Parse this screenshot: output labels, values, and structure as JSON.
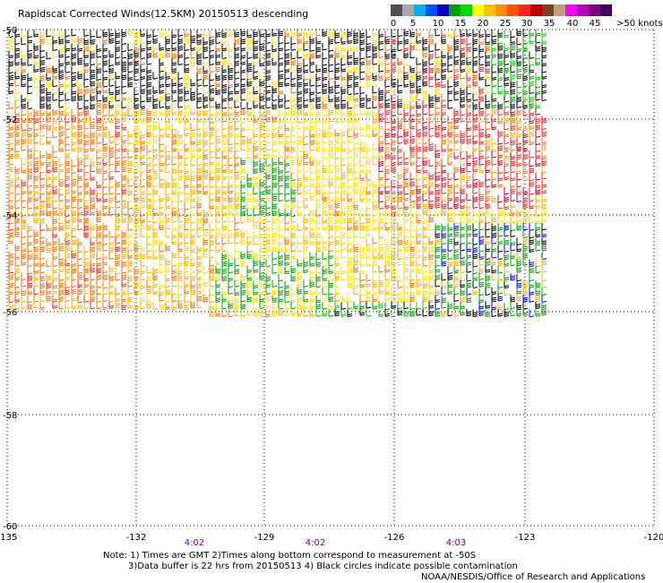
{
  "title": "Rapidscat Corrected Winds(12.5KM) 20150513 descending",
  "legend": {
    "colors": [
      "#505050",
      "#a8a8a8",
      "#00b0f0",
      "#0050ff",
      "#0000c0",
      "#00a000",
      "#00dd00",
      "#ffff00",
      "#ffc000",
      "#ff9000",
      "#ff5000",
      "#ff2020",
      "#c00000",
      "#804020",
      "#c0a080",
      "#ff00ff",
      "#c000c0",
      "#800080",
      "#400060"
    ],
    "labels": [
      "0",
      "5",
      "10",
      "15",
      "20",
      "25",
      "30",
      "35",
      "40",
      "45",
      ">50 knots"
    ]
  },
  "map": {
    "lat_labels": [
      "-50",
      "-52",
      "-54",
      "-56",
      "-58",
      "-60"
    ],
    "lon_labels": [
      "-135",
      "-132",
      "-129",
      "-126",
      "-123",
      "-120"
    ],
    "time_labels": [
      "4:02",
      "4:02",
      "4:03"
    ],
    "barb_colors": {
      "black": "#000000",
      "yellow": "#ffe000",
      "gold": "#ffb000",
      "orange": "#ff7000",
      "red": "#ff2020",
      "crimson": "#c00020",
      "green": "#00a000",
      "lime": "#00d000",
      "blue": "#0000ff"
    }
  },
  "notes": {
    "line1": "Note: 1) Times are GMT 2)Times along bottom correspond to measurement at -50S",
    "line2": "3)Data buffer is 22 hrs from 20150513 4) Black circles indicate possible contamination",
    "line3": "NOAA/NESDIS/Office of Research and Applications"
  }
}
